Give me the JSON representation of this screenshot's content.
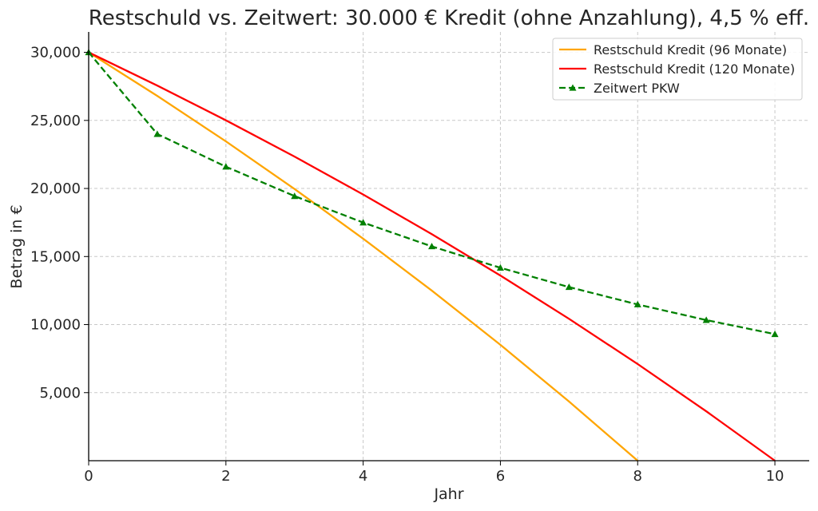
{
  "chart_data": {
    "type": "line",
    "title": "Restschuld vs. Zeitwert: 30.000 € Kredit (ohne Anzahlung), 4,5 % eff.",
    "xlabel": "Jahr",
    "ylabel": "Betrag in €",
    "xlim": [
      0,
      10.5
    ],
    "ylim": [
      0,
      31500
    ],
    "xticks": [
      0,
      2,
      4,
      6,
      8,
      10
    ],
    "xtick_labels": [
      "0",
      "2",
      "4",
      "6",
      "8",
      "10"
    ],
    "yticks": [
      5000,
      10000,
      15000,
      20000,
      25000,
      30000
    ],
    "ytick_labels": [
      "5,000",
      "10,000",
      "15,000",
      "20,000",
      "25,000",
      "30,000"
    ],
    "grid": true,
    "legend_position": "top-right",
    "series": [
      {
        "name": "Restschuld Kredit (96 Monate)",
        "color": "#ffa500",
        "style": "solid",
        "marker": "none",
        "x": [
          0,
          1,
          2,
          3,
          4,
          5,
          6,
          7,
          8
        ],
        "y": [
          30000,
          26801,
          23458,
          19964,
          16314,
          12499,
          8512,
          4346,
          0
        ]
      },
      {
        "name": "Restschuld Kredit (120 Monate)",
        "color": "#ff0000",
        "style": "solid",
        "marker": "none",
        "x": [
          0,
          1,
          2,
          3,
          4,
          5,
          6,
          7,
          8,
          9,
          10
        ],
        "y": [
          30000,
          27559,
          25008,
          22342,
          19556,
          16645,
          13602,
          10423,
          7101,
          3629,
          0
        ]
      },
      {
        "name": "Zeitwert PKW",
        "color": "#008000",
        "style": "dashed",
        "marker": "triangle",
        "x": [
          0,
          1,
          2,
          3,
          4,
          5,
          6,
          7,
          8,
          9,
          10
        ],
        "y": [
          30000,
          24000,
          21600,
          19440,
          17496,
          15746,
          14172,
          12755,
          11479,
          10331,
          9298
        ]
      }
    ]
  }
}
